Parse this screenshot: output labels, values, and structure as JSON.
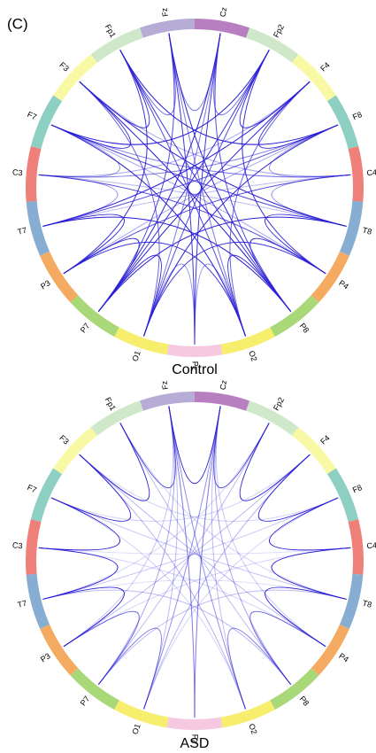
{
  "label": "(C)",
  "panels": [
    {
      "caption": "Control",
      "nodes": [
        "Fz",
        "Cz",
        "Fp2",
        "F4",
        "F8",
        "C4",
        "T8",
        "P4",
        "P8",
        "O2",
        "Pz",
        "O1",
        "P7",
        "P3",
        "T7",
        "C3",
        "F7",
        "F3",
        "Fp1"
      ]
    },
    {
      "caption": "ASD",
      "nodes": [
        "Fz",
        "Cz",
        "Fp2",
        "F4",
        "F8",
        "C4",
        "T8",
        "P4",
        "P8",
        "O2",
        "Pz",
        "O1",
        "P7",
        "P3",
        "T7",
        "C3",
        "F7",
        "F3",
        "Fp1"
      ]
    }
  ]
}
